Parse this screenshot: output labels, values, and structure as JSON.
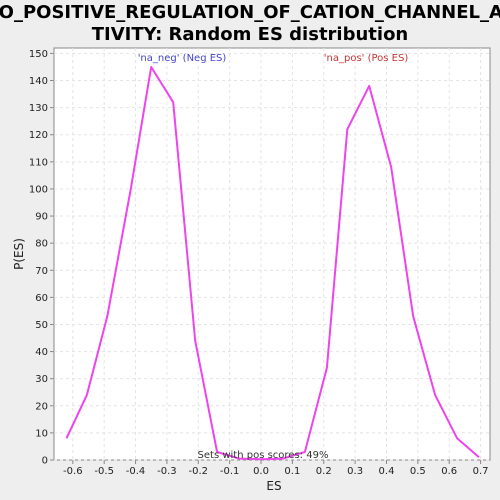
{
  "chart_data": {
    "type": "line",
    "title_line1": "GO_POSITIVE_REGULATION_OF_CATION_CHANNEL_AC",
    "title_line2": "TIVITY: Random ES distribution",
    "xlabel": "ES",
    "ylabel": "P(ES)",
    "xlim": [
      -0.66,
      0.73
    ],
    "ylim": [
      0,
      152
    ],
    "xticks": [
      -0.6,
      -0.5,
      -0.4,
      -0.3,
      -0.2,
      -0.1,
      0.0,
      0.1,
      0.2,
      0.3,
      0.4,
      0.5,
      0.6,
      0.7
    ],
    "xtick_labels": [
      "-0.6",
      "-0.5",
      "-0.4",
      "-0.3",
      "-0.2",
      "-0.1",
      "0.0",
      "0.1",
      "0.2",
      "0.3",
      "0.4",
      "0.5",
      "0.6",
      "0.7"
    ],
    "yticks": [
      0,
      10,
      20,
      30,
      40,
      50,
      60,
      70,
      80,
      90,
      100,
      110,
      120,
      130,
      140,
      150
    ],
    "ytick_labels": [
      "0",
      "10",
      "20",
      "30",
      "40",
      "50",
      "60",
      "70",
      "80",
      "90",
      "100",
      "110",
      "120",
      "130",
      "140",
      "150"
    ],
    "grid": true,
    "series": [
      {
        "color": "#ee44ee",
        "x": [
          -0.62,
          -0.555,
          -0.49,
          -0.415,
          -0.35,
          -0.28,
          -0.21,
          -0.14,
          -0.07,
          0.0,
          0.07,
          0.14,
          0.21,
          0.275,
          0.345,
          0.415,
          0.485,
          0.555,
          0.625,
          0.695
        ],
        "y": [
          8,
          24,
          53,
          100,
          145,
          132,
          44,
          3,
          0.5,
          0.3,
          0.5,
          3,
          34,
          122,
          138,
          108,
          53,
          24,
          8,
          1
        ]
      }
    ],
    "annotations": {
      "neg": {
        "text": "'na_neg' (Neg ES)",
        "color": "#4444cc"
      },
      "pos": {
        "text": "'na_pos' (Pos ES)",
        "color": "#cc3333"
      },
      "sets": {
        "text": "Sets with pos scores: 49%",
        "color": "#333333"
      }
    },
    "colors": {
      "plot_bg": "#ffffff",
      "page_bg": "#eeeeee",
      "grid": "#e4e4e4",
      "axis": "#888888"
    }
  }
}
